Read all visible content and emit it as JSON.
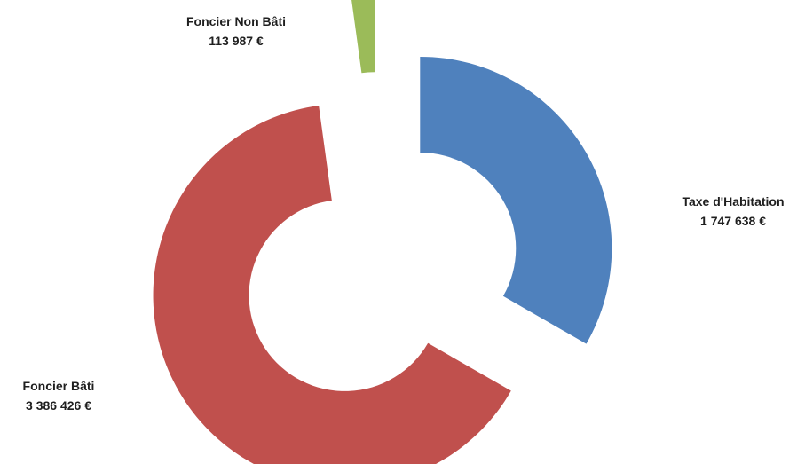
{
  "chart_data": {
    "type": "pie",
    "variant": "doughnut-exploded",
    "title": "",
    "currency": "€",
    "slices": [
      {
        "name": "Taxe d'Habitation",
        "value": 1747638,
        "value_label": "1 747 638 €",
        "color": "#4f81bd"
      },
      {
        "name": "Foncier Bâti",
        "value": 3386426,
        "value_label": "3 386 426 €",
        "color": "#c0504d"
      },
      {
        "name": "Foncier Non Bâti",
        "value": 113987,
        "value_label": "113 987 €",
        "color": "#9bbb59"
      }
    ],
    "legend": "none",
    "data_labels": "category-and-value"
  }
}
